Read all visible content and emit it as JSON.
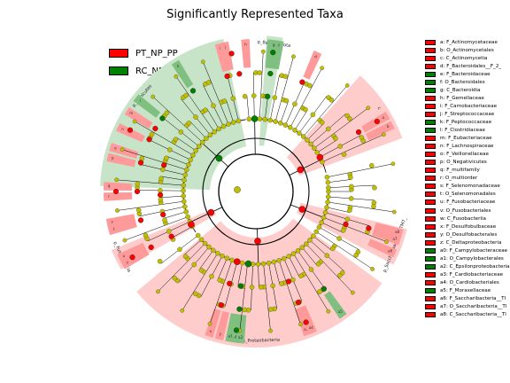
{
  "page_title": "Significantly Represented Taxa",
  "groups": [
    {
      "name": "PT_NP_PP",
      "color": "#ff0000"
    },
    {
      "name": "RC_NP_PP",
      "color": "#008000"
    }
  ],
  "taxa_legend": [
    {
      "label": "a: F_Actinomycetaceae",
      "group": "PT_NP_PP"
    },
    {
      "label": "b: O_Actinomycetales",
      "group": "PT_NP_PP"
    },
    {
      "label": "c: C_Actinomycetia",
      "group": "PT_NP_PP"
    },
    {
      "label": "d: F_Bacteroidales__F_2_",
      "group": "PT_NP_PP"
    },
    {
      "label": "e: F_Bacteroidaceae",
      "group": "RC_NP_PP"
    },
    {
      "label": "f: O_Bacteroidales",
      "group": "RC_NP_PP"
    },
    {
      "label": "g: C_Bacteroidia",
      "group": "RC_NP_PP"
    },
    {
      "label": "h: F_Gemellaceae",
      "group": "PT_NP_PP"
    },
    {
      "label": "i: F_Carnobacteriaceae",
      "group": "PT_NP_PP"
    },
    {
      "label": "j: F_Streptococcaceae",
      "group": "PT_NP_PP"
    },
    {
      "label": "k: F_Peptococcaceae",
      "group": "RC_NP_PP"
    },
    {
      "label": "l: F_Clostridiaceae",
      "group": "RC_NP_PP"
    },
    {
      "label": "m: F_Eubacteriaceae",
      "group": "PT_NP_PP"
    },
    {
      "label": "n: F_Lachnospiraceae",
      "group": "PT_NP_PP"
    },
    {
      "label": "o: F_Veillonellaceae",
      "group": "PT_NP_PP"
    },
    {
      "label": "p: O_Negativicutes",
      "group": "PT_NP_PP"
    },
    {
      "label": "q: F_multifamily",
      "group": "PT_NP_PP"
    },
    {
      "label": "r: O_multiorder",
      "group": "PT_NP_PP"
    },
    {
      "label": "s: F_Selenomonadaceae",
      "group": "PT_NP_PP"
    },
    {
      "label": "t: O_Selenomonadales",
      "group": "PT_NP_PP"
    },
    {
      "label": "u: F_Fusobacteriaceae",
      "group": "PT_NP_PP"
    },
    {
      "label": "v: O_Fusobacteriales",
      "group": "PT_NP_PP"
    },
    {
      "label": "w: C_Fusobacteriia",
      "group": "PT_NP_PP"
    },
    {
      "label": "x: F_Desulfobulbaceae",
      "group": "PT_NP_PP"
    },
    {
      "label": "y: O_Desulfobacterales",
      "group": "PT_NP_PP"
    },
    {
      "label": "z: C_Deltaproteobacteria",
      "group": "PT_NP_PP"
    },
    {
      "label": "a0: F_Campylobacteraceae",
      "group": "RC_NP_PP"
    },
    {
      "label": "a1: O_Campylobacterales",
      "group": "RC_NP_PP"
    },
    {
      "label": "a2: C_Epsilonproteobacteria",
      "group": "RC_NP_PP"
    },
    {
      "label": "a3: F_Cardiobacteriaceae",
      "group": "PT_NP_PP"
    },
    {
      "label": "a4: O_Cardiobacteriales",
      "group": "PT_NP_PP"
    },
    {
      "label": "a5: F_Moraxellaceae",
      "group": "RC_NP_PP"
    },
    {
      "label": "a6: F_Saccharibacteria__Tl",
      "group": "PT_NP_PP"
    },
    {
      "label": "a7: O_Saccharibacteria__Tl",
      "group": "PT_NP_PP"
    },
    {
      "label": "a8: C_Saccharibacteria__Tl",
      "group": "PT_NP_PP"
    }
  ],
  "chart_data": {
    "type": "cladogram",
    "title": "Significantly Represented Taxa",
    "series": [
      {
        "name": "PT_NP_PP",
        "color": "#ff0000",
        "shade": "#ffcccc"
      },
      {
        "name": "RC_NP_PP",
        "color": "#008000",
        "shade": "#c8e4c8"
      }
    ],
    "nonsignificant_color": "#bfbf00",
    "phyla": [
      {
        "name": "p_Firmicutes",
        "group": "RC_NP_PP",
        "from_deg": 182,
        "to_deg": 258
      },
      {
        "name": "p_Bacteroidota",
        "group": "RC_NP_PP",
        "from_deg": 274,
        "to_deg": 280
      },
      {
        "name": "c",
        "group": "PT_NP_PP",
        "from_deg": 312,
        "to_deg": 340
      },
      {
        "name": "p_Saccharibacteria__TM7_",
        "group": "PT_NP_PP",
        "from_deg": 14,
        "to_deg": 28
      },
      {
        "name": "p_Proteobacteria",
        "group": "PT_NP_PP",
        "from_deg": 36,
        "to_deg": 140
      },
      {
        "name": "p_Fusobacteria",
        "group": "PT_NP_PP",
        "from_deg": 150,
        "to_deg": 158
      }
    ],
    "clade_labels": [
      {
        "tag": "a",
        "group": "PT_NP_PP",
        "angle": 330
      },
      {
        "tag": "b",
        "group": "PT_NP_PP",
        "angle": 334
      },
      {
        "tag": "d",
        "group": "PT_NP_PP",
        "angle": 294
      },
      {
        "tag": "e",
        "group": "RC_NP_PP",
        "angle": 276
      },
      {
        "tag": "f",
        "group": "RC_NP_PP",
        "angle": 279
      },
      {
        "tag": "g",
        "group": "RC_NP_PP",
        "angle": 277
      },
      {
        "tag": "h",
        "group": "PT_NP_PP",
        "angle": 266
      },
      {
        "tag": "i",
        "group": "PT_NP_PP",
        "angle": 256
      },
      {
        "tag": "j",
        "group": "PT_NP_PP",
        "angle": 258
      },
      {
        "tag": "k",
        "group": "RC_NP_PP",
        "angle": 238
      },
      {
        "tag": "l",
        "group": "RC_NP_PP",
        "angle": 218
      },
      {
        "tag": "m",
        "group": "PT_NP_PP",
        "angle": 212
      },
      {
        "tag": "n",
        "group": "PT_NP_PP",
        "angle": 205
      },
      {
        "tag": "o",
        "group": "PT_NP_PP",
        "angle": 197
      },
      {
        "tag": "p",
        "group": "PT_NP_PP",
        "angle": 193
      },
      {
        "tag": "q",
        "group": "PT_NP_PP",
        "angle": 182
      },
      {
        "tag": "r",
        "group": "PT_NP_PP",
        "angle": 178
      },
      {
        "tag": "s",
        "group": "PT_NP_PP",
        "angle": 168
      },
      {
        "tag": "t",
        "group": "PT_NP_PP",
        "angle": 165
      },
      {
        "tag": "u",
        "group": "PT_NP_PP",
        "angle": 154
      },
      {
        "tag": "v",
        "group": "PT_NP_PP",
        "angle": 151
      },
      {
        "tag": "x",
        "group": "PT_NP_PP",
        "angle": 108
      },
      {
        "tag": "y",
        "group": "PT_NP_PP",
        "angle": 104
      },
      {
        "tag": "a0",
        "group": "RC_NP_PP",
        "angle": 98
      },
      {
        "tag": "a1",
        "group": "RC_NP_PP",
        "angle": 100
      },
      {
        "tag": "a2",
        "group": "RC_NP_PP",
        "angle": 96
      },
      {
        "tag": "a3",
        "group": "PT_NP_PP",
        "angle": 70
      },
      {
        "tag": "a4",
        "group": "PT_NP_PP",
        "angle": 68
      },
      {
        "tag": "a5",
        "group": "RC_NP_PP",
        "angle": 55
      },
      {
        "tag": "a6",
        "group": "PT_NP_PP",
        "angle": 24
      },
      {
        "tag": "a7",
        "group": "PT_NP_PP",
        "angle": 19
      },
      {
        "tag": "a8",
        "group": "PT_NP_PP",
        "angle": 16
      }
    ],
    "significant_nodes": [
      {
        "level": 1,
        "angle": 222,
        "group": "RC_NP_PP"
      },
      {
        "level": 2,
        "angle": 269,
        "group": "RC_NP_PP"
      },
      {
        "level": 1,
        "angle": 334,
        "group": "PT_NP_PP"
      },
      {
        "level": 2,
        "angle": 332,
        "group": "PT_NP_PP"
      },
      {
        "level": 1,
        "angle": 21,
        "group": "PT_NP_PP"
      },
      {
        "level": 1,
        "angle": 88,
        "group": "PT_NP_PP"
      },
      {
        "level": 2,
        "angle": 96,
        "group": "RC_NP_PP"
      },
      {
        "level": 2,
        "angle": 105,
        "group": "PT_NP_PP"
      },
      {
        "level": 1,
        "angle": 155,
        "group": "PT_NP_PP"
      },
      {
        "level": 2,
        "angle": 153,
        "group": "PT_NP_PP"
      },
      {
        "level": 3,
        "angle": 178,
        "group": "PT_NP_PP"
      },
      {
        "level": 3,
        "angle": 196,
        "group": "PT_NP_PP"
      },
      {
        "level": 4,
        "angle": 262,
        "group": "PT_NP_PP"
      },
      {
        "level": 4,
        "angle": 277,
        "group": "RC_NP_PP"
      },
      {
        "level": 3,
        "angle": 277,
        "group": "RC_NP_PP"
      },
      {
        "level": 4,
        "angle": 293,
        "group": "PT_NP_PP"
      },
      {
        "level": 4,
        "angle": 330,
        "group": "PT_NP_PP"
      },
      {
        "level": 4,
        "angle": 18,
        "group": "PT_NP_PP"
      },
      {
        "level": 3,
        "angle": 20,
        "group": "PT_NP_PP"
      },
      {
        "level": 4,
        "angle": 55,
        "group": "RC_NP_PP"
      },
      {
        "level": 4,
        "angle": 69,
        "group": "PT_NP_PP"
      },
      {
        "level": 3,
        "angle": 70,
        "group": "PT_NP_PP"
      },
      {
        "level": 4,
        "angle": 98,
        "group": "RC_NP_PP"
      },
      {
        "level": 3,
        "angle": 99,
        "group": "RC_NP_PP"
      },
      {
        "level": 4,
        "angle": 107,
        "group": "PT_NP_PP"
      },
      {
        "level": 3,
        "angle": 106,
        "group": "PT_NP_PP"
      },
      {
        "level": 4,
        "angle": 152,
        "group": "PT_NP_PP"
      },
      {
        "level": 3,
        "angle": 152,
        "group": "PT_NP_PP"
      },
      {
        "level": 4,
        "angle": 166,
        "group": "PT_NP_PP"
      },
      {
        "level": 3,
        "angle": 166,
        "group": "PT_NP_PP"
      },
      {
        "level": 4,
        "angle": 180,
        "group": "PT_NP_PP"
      },
      {
        "level": 4,
        "angle": 194,
        "group": "PT_NP_PP"
      },
      {
        "level": 4,
        "angle": 206,
        "group": "PT_NP_PP"
      },
      {
        "level": 4,
        "angle": 212,
        "group": "PT_NP_PP"
      },
      {
        "level": 4,
        "angle": 218,
        "group": "RC_NP_PP"
      },
      {
        "level": 4,
        "angle": 238,
        "group": "RC_NP_PP"
      },
      {
        "level": 4,
        "angle": 256,
        "group": "PT_NP_PP"
      },
      {
        "level": 5,
        "angle": 330,
        "group": "PT_NP_PP"
      },
      {
        "level": 5,
        "angle": 277,
        "group": "RC_NP_PP"
      },
      {
        "level": 5,
        "angle": 98,
        "group": "RC_NP_PP"
      },
      {
        "level": 5,
        "angle": 69,
        "group": "PT_NP_PP"
      },
      {
        "level": 5,
        "angle": 152,
        "group": "PT_NP_PP"
      },
      {
        "level": 5,
        "angle": 206,
        "group": "PT_NP_PP"
      },
      {
        "level": 5,
        "angle": 180,
        "group": "PT_NP_PP"
      },
      {
        "level": 5,
        "angle": 260,
        "group": "PT_NP_PP"
      }
    ],
    "legend": "top-left"
  }
}
